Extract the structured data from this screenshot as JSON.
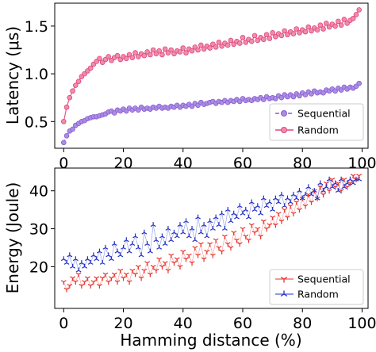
{
  "figure": {
    "xlabel": "Hamming distance (%)"
  },
  "chart_data": [
    {
      "type": "line",
      "title": "",
      "xlabel": "",
      "ylabel": "Latency (μs)",
      "xlim": [
        -3,
        102
      ],
      "ylim": [
        0.22,
        1.74
      ],
      "xticks": [
        "0",
        "20",
        "40",
        "60",
        "80",
        "100"
      ],
      "yticks": [
        "0.5",
        "1.0",
        "1.5"
      ],
      "ytick_values": [
        0.5,
        1.0,
        1.5
      ],
      "legend": {
        "placement": "lower-right",
        "entries": [
          "Sequential",
          "Random"
        ]
      },
      "grid": false,
      "series": [
        {
          "name": "Sequential",
          "color": "#8a5bd6",
          "marker": "circle",
          "line_style": "dashed",
          "x_start": 0,
          "x_step": 1,
          "values": [
            0.28,
            0.35,
            0.4,
            0.42,
            0.46,
            0.48,
            0.5,
            0.51,
            0.53,
            0.54,
            0.55,
            0.55,
            0.56,
            0.57,
            0.58,
            0.6,
            0.61,
            0.59,
            0.62,
            0.61,
            0.63,
            0.61,
            0.64,
            0.62,
            0.64,
            0.62,
            0.65,
            0.63,
            0.64,
            0.63,
            0.65,
            0.64,
            0.66,
            0.64,
            0.65,
            0.64,
            0.66,
            0.65,
            0.67,
            0.65,
            0.67,
            0.66,
            0.68,
            0.66,
            0.69,
            0.67,
            0.7,
            0.68,
            0.69,
            0.7,
            0.71,
            0.69,
            0.71,
            0.7,
            0.72,
            0.7,
            0.72,
            0.71,
            0.73,
            0.71,
            0.74,
            0.72,
            0.73,
            0.72,
            0.74,
            0.73,
            0.75,
            0.73,
            0.76,
            0.74,
            0.75,
            0.74,
            0.77,
            0.75,
            0.78,
            0.76,
            0.78,
            0.76,
            0.79,
            0.77,
            0.8,
            0.78,
            0.81,
            0.79,
            0.82,
            0.8,
            0.81,
            0.8,
            0.83,
            0.82,
            0.84,
            0.82,
            0.85,
            0.83,
            0.86,
            0.84,
            0.86,
            0.85,
            0.87,
            0.9
          ]
        },
        {
          "name": "Random",
          "color": "#e0457b",
          "marker": "circle",
          "line_style": "solid",
          "x_start": 0,
          "x_step": 1,
          "values": [
            0.5,
            0.65,
            0.75,
            0.82,
            0.88,
            0.92,
            0.97,
            1.0,
            1.03,
            1.06,
            1.1,
            1.13,
            1.16,
            1.12,
            1.15,
            1.18,
            1.14,
            1.17,
            1.19,
            1.15,
            1.18,
            1.16,
            1.2,
            1.17,
            1.22,
            1.18,
            1.21,
            1.19,
            1.23,
            1.2,
            1.25,
            1.21,
            1.24,
            1.2,
            1.26,
            1.22,
            1.25,
            1.21,
            1.24,
            1.23,
            1.27,
            1.22,
            1.26,
            1.24,
            1.28,
            1.25,
            1.3,
            1.26,
            1.29,
            1.27,
            1.31,
            1.28,
            1.33,
            1.29,
            1.32,
            1.3,
            1.35,
            1.31,
            1.34,
            1.32,
            1.38,
            1.33,
            1.36,
            1.34,
            1.4,
            1.35,
            1.38,
            1.36,
            1.41,
            1.37,
            1.43,
            1.39,
            1.42,
            1.4,
            1.45,
            1.41,
            1.44,
            1.42,
            1.47,
            1.43,
            1.46,
            1.44,
            1.49,
            1.45,
            1.48,
            1.46,
            1.51,
            1.47,
            1.53,
            1.49,
            1.52,
            1.5,
            1.55,
            1.51,
            1.57,
            1.53,
            1.56,
            1.58,
            1.62,
            1.67
          ]
        }
      ]
    },
    {
      "type": "line",
      "title": "",
      "xlabel": "Hamming distance (%)",
      "ylabel": "Energy (Joule)",
      "xlim": [
        -3,
        102
      ],
      "ylim": [
        9,
        46
      ],
      "xticks": [
        "0",
        "20",
        "40",
        "60",
        "80",
        "100"
      ],
      "yticks": [
        "20",
        "30",
        "40"
      ],
      "ytick_values": [
        20,
        30,
        40
      ],
      "legend": {
        "placement": "lower-right",
        "entries": [
          "Sequential",
          "Random"
        ]
      },
      "grid": false,
      "series": [
        {
          "name": "Sequential",
          "color": "#e8302a",
          "marker": "tri_down",
          "line_style": "solid",
          "x_start": 0,
          "x_step": 1,
          "values": [
            16,
            14,
            15,
            17,
            16,
            18,
            15,
            16,
            17,
            15,
            16,
            17,
            15,
            17,
            18,
            16,
            17,
            18,
            16,
            19,
            17,
            18,
            16,
            19,
            18,
            20,
            17,
            19,
            21,
            18,
            20,
            19,
            22,
            20,
            21,
            19,
            23,
            21,
            22,
            20,
            24,
            22,
            23,
            21,
            25,
            23,
            26,
            22,
            24,
            26,
            23,
            27,
            25,
            24,
            28,
            26,
            25,
            29,
            27,
            26,
            30,
            28,
            27,
            31,
            29,
            30,
            28,
            32,
            30,
            31,
            33,
            31,
            34,
            32,
            35,
            33,
            36,
            34,
            37,
            35,
            38,
            36,
            39,
            37,
            40,
            38,
            41,
            39,
            42,
            40,
            43,
            41,
            42,
            40,
            43,
            41,
            42,
            44,
            43,
            44
          ]
        },
        {
          "name": "Random",
          "color": "#2330c8",
          "marker": "tri_up",
          "line_style": "solid",
          "x_start": 0,
          "x_step": 1,
          "values": [
            22,
            21,
            23,
            20,
            22,
            19,
            21,
            20,
            22,
            21,
            23,
            22,
            24,
            21,
            25,
            23,
            22,
            26,
            24,
            23,
            25,
            27,
            24,
            26,
            28,
            25,
            23,
            29,
            26,
            24,
            31,
            27,
            25,
            28,
            26,
            30,
            27,
            29,
            28,
            31,
            29,
            32,
            28,
            30,
            27,
            33,
            29,
            31,
            28,
            32,
            30,
            33,
            31,
            34,
            30,
            35,
            32,
            34,
            33,
            36,
            34,
            35,
            33,
            37,
            35,
            36,
            34,
            38,
            36,
            37,
            35,
            38,
            37,
            39,
            36,
            38,
            37,
            39,
            38,
            40,
            38,
            39,
            41,
            39,
            40,
            38,
            42,
            40,
            41,
            43,
            41,
            42,
            40,
            43,
            41,
            42,
            43,
            42,
            43,
            43
          ]
        }
      ]
    }
  ]
}
